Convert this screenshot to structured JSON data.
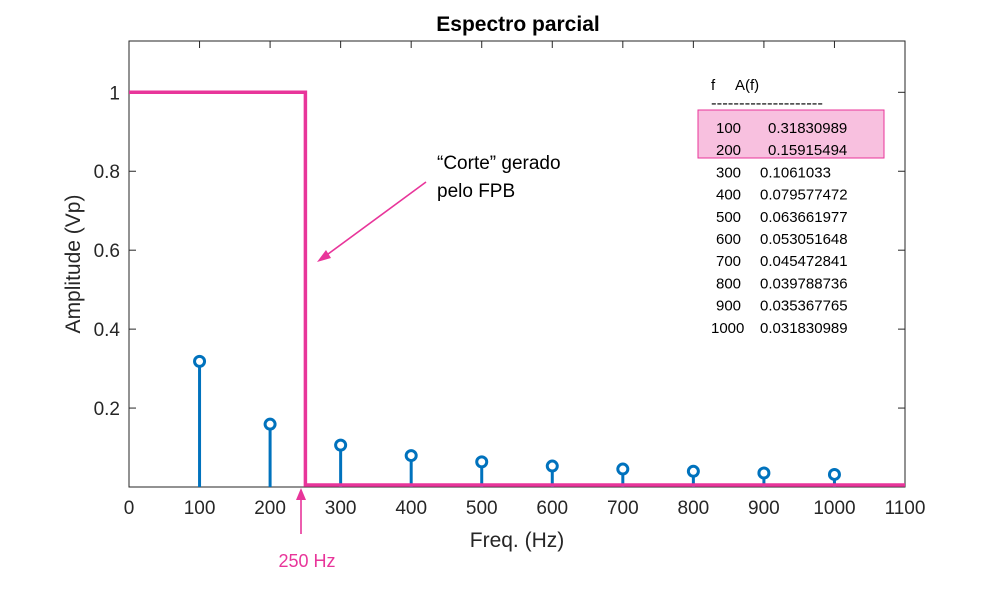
{
  "chart_data": {
    "type": "stem",
    "title": "Espectro parcial",
    "xlabel": "Freq. (Hz)",
    "ylabel": "Amplitude (Vp)",
    "xlim": [
      0,
      1100
    ],
    "ylim": [
      0,
      1.13
    ],
    "xticks": [
      "0",
      "100",
      "200",
      "300",
      "400",
      "500",
      "600",
      "700",
      "800",
      "900",
      "1000",
      "1100"
    ],
    "yticks": [
      "0.2",
      "0.4",
      "0.6",
      "0.8",
      "1"
    ],
    "grid": false,
    "stems": {
      "x": [
        100,
        200,
        300,
        400,
        500,
        600,
        700,
        800,
        900,
        1000
      ],
      "y": [
        0.3183,
        0.1592,
        0.1061,
        0.0796,
        0.0637,
        0.0531,
        0.0455,
        0.0398,
        0.0354,
        0.0318
      ],
      "color": "#0072bd"
    },
    "filter_curve": {
      "x": [
        0,
        250,
        250,
        1100
      ],
      "y": [
        1,
        1,
        0,
        0
      ],
      "color": "#e8359a"
    },
    "annotations": {
      "corte_line1": "“Corte” gerado",
      "corte_line2": "pelo FPB",
      "cutoff_label": "250 Hz"
    },
    "table": {
      "header_f": "f",
      "header_a": "A(f)",
      "separator": "--------------------",
      "highlight_color": "#f8c0df",
      "rows": [
        {
          "f": "100",
          "a": "0.31830989"
        },
        {
          "f": "200",
          "a": "0.15915494"
        },
        {
          "f": "300",
          "a": "0.1061033"
        },
        {
          "f": "400",
          "a": "0.079577472"
        },
        {
          "f": "500",
          "a": "0.063661977"
        },
        {
          "f": "600",
          "a": "0.053051648"
        },
        {
          "f": "700",
          "a": "0.045472841"
        },
        {
          "f": "800",
          "a": "0.039788736"
        },
        {
          "f": "900",
          "a": "0.035367765"
        },
        {
          "f": "1000",
          "a": "0.031830989"
        }
      ]
    }
  }
}
